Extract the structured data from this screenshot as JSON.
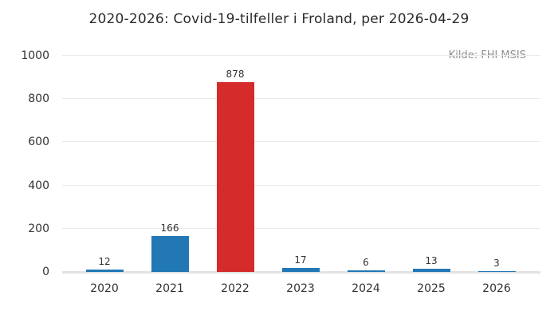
{
  "header": {
    "title": "2020-2026: Covid-19-tilfeller i Froland, per 2026-04-29",
    "source_label": "Kilde: FHI MSIS"
  },
  "colors": {
    "bar_blue": "#2277b5",
    "bar_red": "#d62b2b",
    "gridline": "#eaeaea",
    "baseline": "#e2e2e2",
    "tick_text": "#333333",
    "title_text": "#2b2b2b",
    "source_text": "#8f8f8f"
  },
  "chart_data": {
    "type": "bar",
    "title": "2020-2026: Covid-19-tilfeller i Froland, per 2026-04-29",
    "annotation": "Kilde: FHI MSIS",
    "categories": [
      "2020",
      "2021",
      "2022",
      "2023",
      "2024",
      "2025",
      "2026"
    ],
    "values": [
      12,
      166,
      878,
      17,
      6,
      13,
      3
    ],
    "bar_colors": [
      "#2277b5",
      "#2277b5",
      "#d62b2b",
      "#2277b5",
      "#2277b5",
      "#2277b5",
      "#2277b5"
    ],
    "value_labels": [
      "12",
      "166",
      "878",
      "17",
      "6",
      "13",
      "3"
    ],
    "xlabel": "",
    "ylabel": "",
    "ylim": [
      0,
      1000
    ],
    "yticks": [
      0,
      200,
      400,
      600,
      800,
      1000
    ],
    "grid": true,
    "legend": false
  }
}
